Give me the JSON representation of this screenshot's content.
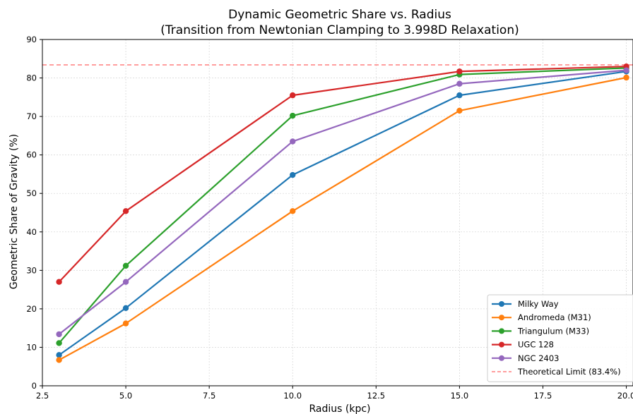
{
  "chart_data": {
    "type": "line",
    "title": "Dynamic Geometric Share vs. Radius",
    "subtitle": "(Transition from Newtonian Clamping to 3.998D Relaxation)",
    "xlabel": "Radius (kpc)",
    "ylabel": "Geometric Share of Gravity (%)",
    "xlim": [
      2.5,
      20.2
    ],
    "ylim": [
      0,
      90
    ],
    "x_ticks": [
      2.5,
      5.0,
      7.5,
      10.0,
      12.5,
      15.0,
      17.5,
      20.0
    ],
    "x_tick_labels": [
      "2.5",
      "5.0",
      "7.5",
      "10.0",
      "12.5",
      "15.0",
      "17.5",
      "20.0"
    ],
    "y_ticks": [
      0,
      10,
      20,
      30,
      40,
      50,
      60,
      70,
      80,
      90
    ],
    "y_tick_labels": [
      "0",
      "10",
      "20",
      "30",
      "40",
      "50",
      "60",
      "70",
      "80",
      "90"
    ],
    "grid": true,
    "legend_position": "lower-right",
    "x": [
      3,
      5,
      10,
      15,
      20
    ],
    "series": [
      {
        "name": "Milky Way",
        "color": "#1f77b4",
        "values": [
          8.0,
          20.2,
          54.8,
          75.5,
          81.7
        ]
      },
      {
        "name": "Andromeda (M31)",
        "color": "#ff7f0e",
        "values": [
          6.7,
          16.2,
          45.4,
          71.5,
          80.1
        ]
      },
      {
        "name": "Triangulum (M33)",
        "color": "#2ca02c",
        "values": [
          11.1,
          31.2,
          70.2,
          80.9,
          82.6
        ]
      },
      {
        "name": "UGC 128",
        "color": "#d62728",
        "values": [
          27.0,
          45.4,
          75.5,
          81.7,
          83.0
        ]
      },
      {
        "name": "NGC 2403",
        "color": "#9467bd",
        "values": [
          13.4,
          27.0,
          63.5,
          78.5,
          82.0
        ]
      }
    ],
    "reference_line": {
      "name": "Theoretical Limit (83.4%)",
      "value": 83.4,
      "color": "#ff7f7f",
      "style": "dashed"
    }
  }
}
